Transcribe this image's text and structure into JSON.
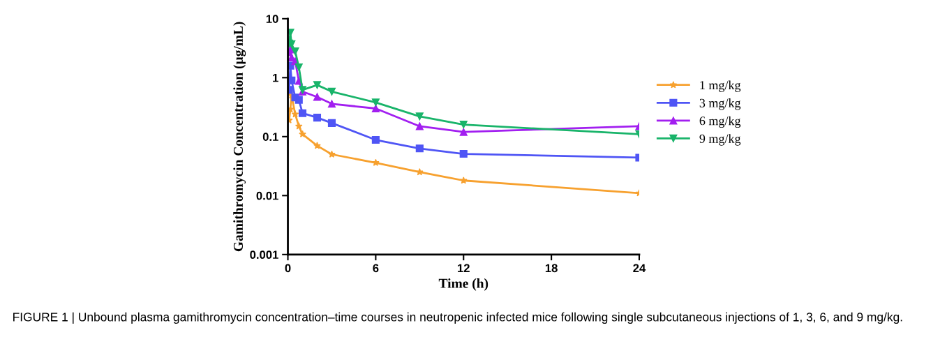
{
  "chart_data": {
    "type": "line",
    "xlabel": "Time (h)",
    "ylabel": "Gamithromycin Concentration (µg/mL)",
    "x": [
      0.083,
      0.167,
      0.25,
      0.5,
      0.75,
      1,
      2,
      3,
      6,
      9,
      12,
      24
    ],
    "series": [
      {
        "name": "1 mg/kg",
        "color": "#f7a12f",
        "marker": "star",
        "values": [
          0.19,
          0.29,
          0.5,
          0.24,
          0.15,
          0.11,
          0.07,
          0.05,
          0.036,
          0.025,
          0.018,
          0.011
        ]
      },
      {
        "name": "3 mg/kg",
        "color": "#4f55f5",
        "marker": "square",
        "values": [
          0.62,
          1.6,
          0.9,
          0.46,
          0.42,
          0.25,
          0.21,
          0.17,
          0.088,
          0.063,
          0.051,
          0.044
        ]
      },
      {
        "name": "6 mg/kg",
        "color": "#a21ff0",
        "marker": "triangle",
        "values": [
          2.7,
          3.0,
          2.2,
          1.9,
          0.88,
          0.58,
          0.47,
          0.36,
          0.3,
          0.15,
          0.12,
          0.15
        ]
      },
      {
        "name": "9 mg/kg",
        "color": "#19b46a",
        "marker": "triangle_down",
        "values": [
          3.8,
          5.8,
          3.7,
          2.8,
          1.5,
          0.62,
          0.75,
          0.58,
          0.38,
          0.22,
          0.16,
          0.11
        ]
      }
    ],
    "log": "y",
    "xlim": [
      0,
      24
    ],
    "xticks": [
      0,
      6,
      12,
      18,
      24
    ],
    "ylim": [
      0.001,
      10
    ],
    "yticks": [
      0.001,
      0.01,
      0.1,
      1,
      10
    ],
    "grid": false,
    "legend": "right",
    "line_style": "solid",
    "annotations": [
      "FIGURE 1 | Unbound plasma gamithromycin concentration–time courses in neutropenic infected mice following single subcutaneous injections of 1, 3, 6, and 9 mg/kg."
    ]
  }
}
